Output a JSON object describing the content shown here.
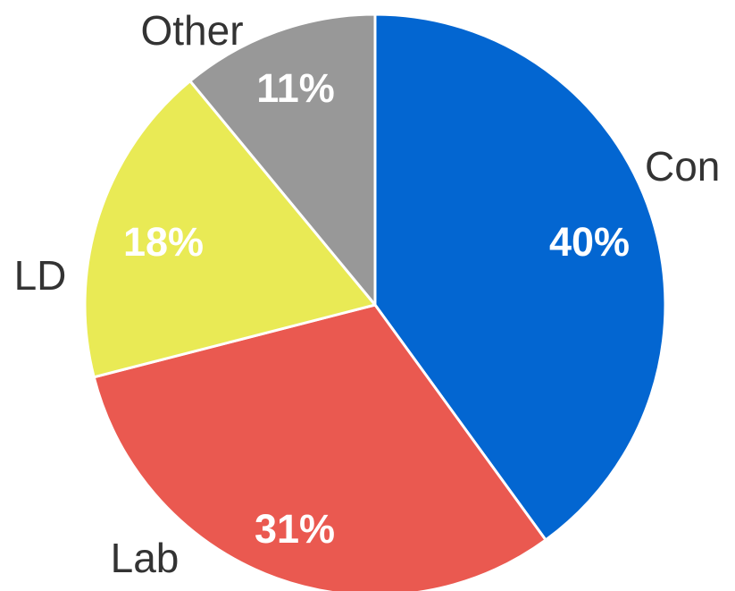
{
  "chart_data": {
    "type": "pie",
    "title": "",
    "slices": [
      {
        "label": "Con",
        "value": 40,
        "value_label": "40%",
        "color": "#0366d1"
      },
      {
        "label": "Lab",
        "value": 31,
        "value_label": "31%",
        "color": "#ea5950"
      },
      {
        "label": "LD",
        "value": 18,
        "value_label": "18%",
        "color": "#e9ea55"
      },
      {
        "label": "Other",
        "value": 11,
        "value_label": "11%",
        "color": "#989898"
      }
    ],
    "start_angle": "12 o'clock",
    "direction": "clockwise",
    "slice_border_color": "#ffffff",
    "legend": "none"
  }
}
